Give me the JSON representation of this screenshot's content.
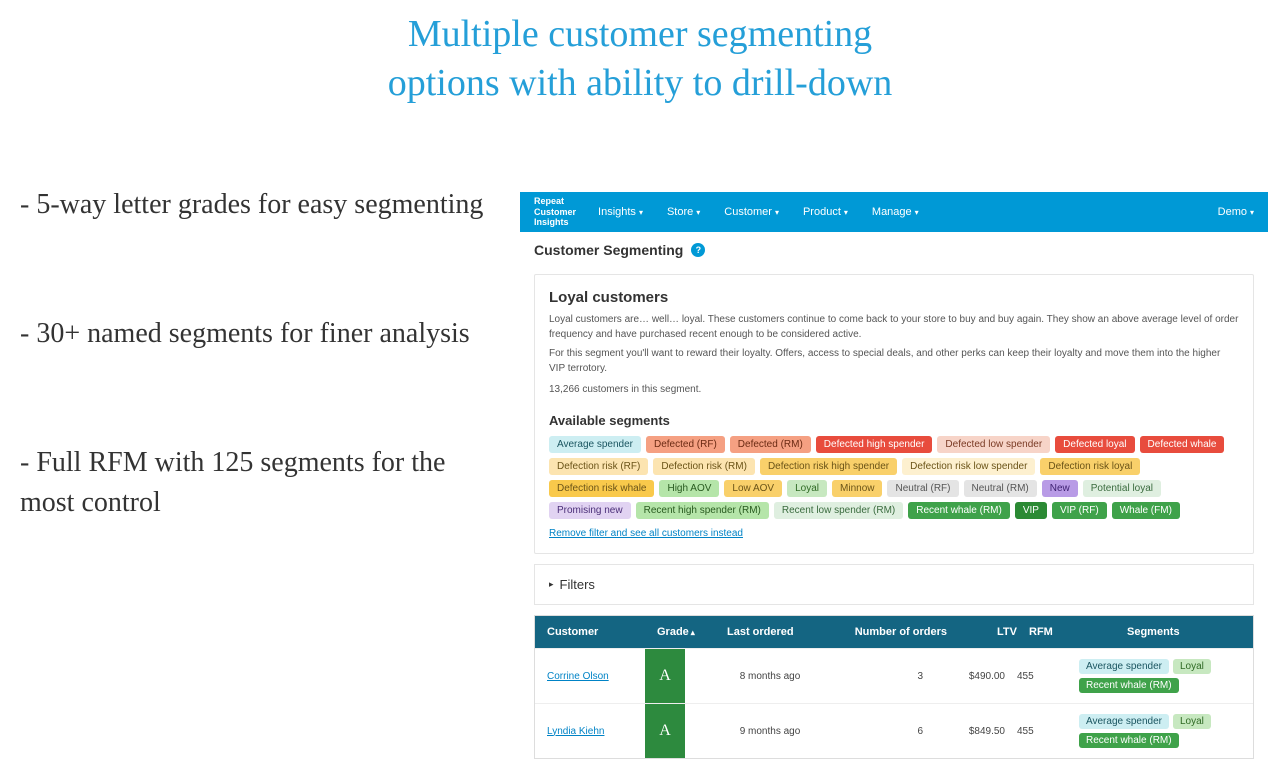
{
  "headline_line1": "Multiple customer segmenting",
  "headline_line2": "options with ability to drill-down",
  "bullets": [
    "- 5-way letter grades for easy segmenting",
    "- 30+ named segments for finer analysis",
    "- Full RFM with 125 segments for the most control"
  ],
  "topbar": {
    "brand_line1": "Repeat",
    "brand_line2": "Customer",
    "brand_line3": "Insights",
    "nav": [
      "Insights",
      "Store",
      "Customer",
      "Product",
      "Manage"
    ],
    "demo": "Demo",
    "bg": "#0099d6"
  },
  "subhead": {
    "title": "Customer Segmenting",
    "help": "?"
  },
  "segment_card": {
    "title": "Loyal customers",
    "p1": "Loyal customers are… well… loyal. These customers continue to come back to your store to buy and buy again. They show an above average level of order frequency and have purchased recent enough to be considered active.",
    "p2": "For this segment you'll want to reward their loyalty. Offers, access to special deals, and other perks can keep their loyalty and move them into the higher VIP terrotory.",
    "count": "13,266 customers in this segment.",
    "avail_title": "Available segments",
    "remove_link": "Remove filter and see all customers instead"
  },
  "tags": [
    {
      "label": "Average spender",
      "bg": "#cdeef2",
      "fg": "#1a5560"
    },
    {
      "label": "Defected (RF)",
      "bg": "#f5a082",
      "fg": "#6b2a13"
    },
    {
      "label": "Defected (RM)",
      "bg": "#f5a082",
      "fg": "#6b2a13"
    },
    {
      "label": "Defected high spender",
      "bg": "#e84c3d",
      "fg": "#ffffff"
    },
    {
      "label": "Defected low spender",
      "bg": "#f7d4c8",
      "fg": "#7a3a24"
    },
    {
      "label": "Defected loyal",
      "bg": "#e84c3d",
      "fg": "#ffffff"
    },
    {
      "label": "Defected whale",
      "bg": "#e84c3d",
      "fg": "#ffffff"
    },
    {
      "label": "Defection risk (RF)",
      "bg": "#fce4b0",
      "fg": "#6b5418"
    },
    {
      "label": "Defection risk (RM)",
      "bg": "#fce4b0",
      "fg": "#6b5418"
    },
    {
      "label": "Defection risk high spender",
      "bg": "#f9d06a",
      "fg": "#6b5418"
    },
    {
      "label": "Defection risk low spender",
      "bg": "#fdf0cf",
      "fg": "#6b5418"
    },
    {
      "label": "Defection risk loyal",
      "bg": "#f9d06a",
      "fg": "#6b5418"
    },
    {
      "label": "Defection risk whale",
      "bg": "#f9c94b",
      "fg": "#6b5418"
    },
    {
      "label": "High AOV",
      "bg": "#b5e5a9",
      "fg": "#285a1f"
    },
    {
      "label": "Low AOV",
      "bg": "#f9d06a",
      "fg": "#6b5418"
    },
    {
      "label": "Loyal",
      "bg": "#c7e8c0",
      "fg": "#2f6a24"
    },
    {
      "label": "Minnow",
      "bg": "#f9d06a",
      "fg": "#6b5418"
    },
    {
      "label": "Neutral (RF)",
      "bg": "#e4e4e4",
      "fg": "#555555"
    },
    {
      "label": "Neutral (RM)",
      "bg": "#e4e4e4",
      "fg": "#555555"
    },
    {
      "label": "New",
      "bg": "#b89be6",
      "fg": "#3d1f70"
    },
    {
      "label": "Potential loyal",
      "bg": "#dfefe0",
      "fg": "#3a6b3e"
    },
    {
      "label": "Promising new",
      "bg": "#e1d3f2",
      "fg": "#4a2e78"
    },
    {
      "label": "Recent high spender (RM)",
      "bg": "#b5e5a9",
      "fg": "#285a1f"
    },
    {
      "label": "Recent low spender (RM)",
      "bg": "#dfefe0",
      "fg": "#3a6b3e"
    },
    {
      "label": "Recent whale (RM)",
      "bg": "#3fa24a",
      "fg": "#ffffff"
    },
    {
      "label": "VIP",
      "bg": "#2b8a34",
      "fg": "#ffffff"
    },
    {
      "label": "VIP (RF)",
      "bg": "#3fa24a",
      "fg": "#ffffff"
    },
    {
      "label": "Whale (FM)",
      "bg": "#3fa24a",
      "fg": "#ffffff"
    }
  ],
  "filters_label": "Filters",
  "table": {
    "header_bg": "#146582",
    "cols": {
      "customer": "Customer",
      "grade": "Grade",
      "last": "Last ordered",
      "num": "Number of orders",
      "ltv": "LTV",
      "rfm": "RFM",
      "segments": "Segments"
    },
    "rows": [
      {
        "customer": "Corrine Olson",
        "grade": "A",
        "grade_bg": "#2d8a3e",
        "last": "8 months ago",
        "num": "3",
        "ltv": "$490.00",
        "rfm": "455",
        "segments": [
          {
            "label": "Average spender",
            "bg": "#cdeef2",
            "fg": "#1a5560"
          },
          {
            "label": "Loyal",
            "bg": "#c7e8c0",
            "fg": "#2f6a24"
          },
          {
            "label": "Recent whale (RM)",
            "bg": "#3fa24a",
            "fg": "#ffffff"
          }
        ]
      },
      {
        "customer": "Lyndia Kiehn",
        "grade": "A",
        "grade_bg": "#2d8a3e",
        "last": "9 months ago",
        "num": "6",
        "ltv": "$849.50",
        "rfm": "455",
        "segments": [
          {
            "label": "Average spender",
            "bg": "#cdeef2",
            "fg": "#1a5560"
          },
          {
            "label": "Loyal",
            "bg": "#c7e8c0",
            "fg": "#2f6a24"
          },
          {
            "label": "Recent whale (RM)",
            "bg": "#3fa24a",
            "fg": "#ffffff"
          }
        ]
      }
    ]
  }
}
